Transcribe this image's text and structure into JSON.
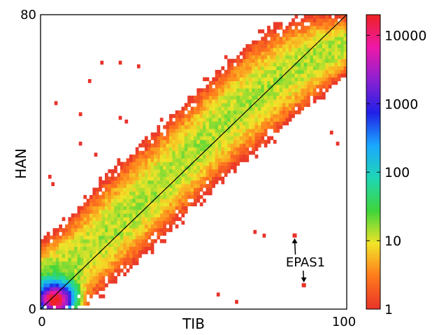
{
  "chart_data": {
    "type": "heatmap",
    "xlabel": "TIB",
    "ylabel": "HAN",
    "xlim": [
      0,
      100
    ],
    "ylim": [
      0,
      80
    ],
    "x_tick_labels": [
      "0",
      "100"
    ],
    "y_tick_labels": [
      "0",
      "80"
    ],
    "grid": false,
    "color_scale": "log",
    "colorbar": {
      "range": [
        1,
        20000
      ],
      "tick_labels": [
        "1",
        "10",
        "100",
        "1000",
        "10000"
      ],
      "tick_values": [
        1,
        10,
        100,
        1000,
        10000
      ],
      "colors": [
        "#e8322a",
        "#ff7a1c",
        "#f2e428",
        "#3ed53a",
        "#1fd6b4",
        "#1aa8ff",
        "#2020e6",
        "#8a20d2",
        "#ee18a8",
        "#ee2222"
      ]
    },
    "diagonal_line": {
      "from": [
        0,
        0
      ],
      "to": [
        100,
        80
      ]
    },
    "density_band": [
      {
        "x": 0,
        "low": 0,
        "high": 18
      },
      {
        "x": 10,
        "low": 0,
        "high": 25
      },
      {
        "x": 20,
        "low": 5,
        "high": 34
      },
      {
        "x": 30,
        "low": 12,
        "high": 42
      },
      {
        "x": 40,
        "low": 20,
        "high": 50
      },
      {
        "x": 50,
        "low": 28,
        "high": 58
      },
      {
        "x": 60,
        "low": 36,
        "high": 66
      },
      {
        "x": 70,
        "low": 43,
        "high": 73
      },
      {
        "x": 80,
        "low": 50,
        "high": 78
      },
      {
        "x": 90,
        "low": 57,
        "high": 80
      },
      {
        "x": 100,
        "low": 64,
        "high": 80
      }
    ],
    "peak": {
      "x": 5,
      "y": 2,
      "count": 10000
    },
    "outliers": [
      {
        "x": 20,
        "y": 67
      },
      {
        "x": 26,
        "y": 67
      },
      {
        "x": 32,
        "y": 66
      },
      {
        "x": 16,
        "y": 62
      },
      {
        "x": 5,
        "y": 56
      },
      {
        "x": 13,
        "y": 53
      },
      {
        "x": 26,
        "y": 52
      },
      {
        "x": 28,
        "y": 51
      },
      {
        "x": 13,
        "y": 45
      },
      {
        "x": 18,
        "y": 42
      },
      {
        "x": 3,
        "y": 36
      },
      {
        "x": 4,
        "y": 34
      },
      {
        "x": 95,
        "y": 48
      },
      {
        "x": 97,
        "y": 45
      },
      {
        "x": 64,
        "y": 2
      },
      {
        "x": 58,
        "y": 4
      },
      {
        "x": 70,
        "y": 21
      },
      {
        "x": 73,
        "y": 20
      }
    ],
    "annotations": [
      {
        "text": "EPAS1",
        "points": [
          {
            "x": 83,
            "y": 20
          },
          {
            "x": 86,
            "y": 6.5
          }
        ]
      }
    ]
  }
}
